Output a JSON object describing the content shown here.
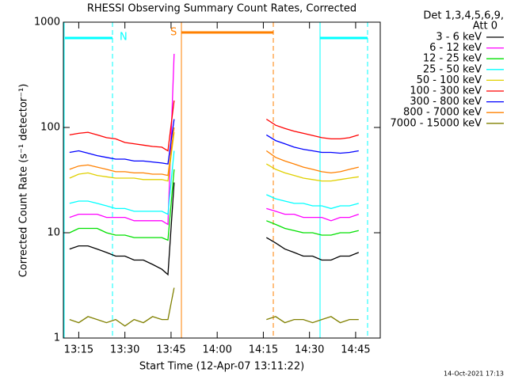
{
  "chart_data": {
    "type": "line",
    "title": "RHESSI Observing Summary Count Rates, Corrected",
    "x_label": "Start Time (12-Apr-07 13:11:22)",
    "y_label": "Corrected Count Rate (s⁻¹ detector⁻¹)",
    "legend_title": [
      "Det 1,3,4,5,6,9,",
      "Att 0"
    ],
    "annotations": [
      "N",
      "S"
    ],
    "footer": "14-Oct-2021 17:13",
    "log_scale": true,
    "x": [
      "13:12",
      "13:15",
      "13:18",
      "13:21",
      "13:24",
      "13:27",
      "13:30",
      "13:33",
      "13:36",
      "13:39",
      "13:42",
      "13:44",
      "13:46",
      "14:00",
      "14:16",
      "14:19",
      "14:22",
      "14:25",
      "14:28",
      "14:31",
      "14:34",
      "14:37",
      "14:40",
      "14:43",
      "14:46"
    ],
    "xlim": [
      "13:10",
      "14:53"
    ],
    "xticks": [
      "13:15",
      "13:30",
      "13:45",
      "14:00",
      "14:15",
      "14:30",
      "14:45"
    ],
    "ylim": [
      1,
      1000
    ],
    "yticks": [
      1,
      10,
      100,
      1000
    ],
    "series": [
      {
        "name": "3 - 6 keV",
        "color": "#000000",
        "values": [
          7,
          7.5,
          7.5,
          7,
          6.5,
          6,
          6,
          5.5,
          5.5,
          5,
          4.5,
          4,
          30,
          null,
          9,
          8,
          7,
          6.5,
          6,
          6,
          5.5,
          5.5,
          6,
          6,
          6.5
        ]
      },
      {
        "name": "6 - 12 keV",
        "color": "#ff00ff",
        "values": [
          14,
          15,
          15,
          15,
          14,
          14,
          14,
          13,
          13,
          13,
          13,
          12,
          500,
          null,
          17,
          16,
          15,
          15,
          14,
          14,
          14,
          13,
          14,
          14,
          15
        ]
      },
      {
        "name": "12 - 25 keV",
        "color": "#00e000",
        "values": [
          10,
          11,
          11,
          11,
          10,
          9.5,
          9.5,
          9,
          9,
          9,
          9,
          8.5,
          40,
          null,
          13,
          12,
          11,
          10.5,
          10,
          10,
          9.5,
          9.5,
          10,
          10,
          10.5
        ]
      },
      {
        "name": "25 - 50 keV",
        "color": "#00ffff",
        "values": [
          19,
          20,
          20,
          19,
          18,
          17,
          17,
          16,
          16,
          16,
          16,
          15,
          60,
          null,
          23,
          21,
          20,
          19,
          19,
          18,
          18,
          17,
          18,
          18,
          19
        ]
      },
      {
        "name": "50 - 100 keV",
        "color": "#e0d000",
        "values": [
          33,
          36,
          37,
          35,
          34,
          33,
          33,
          33,
          32,
          32,
          32,
          31,
          90,
          null,
          45,
          40,
          37,
          35,
          33,
          32,
          31,
          31,
          32,
          33,
          34
        ]
      },
      {
        "name": "100 - 300 keV",
        "color": "#ff0000",
        "values": [
          85,
          88,
          90,
          85,
          80,
          78,
          72,
          70,
          68,
          66,
          65,
          60,
          180,
          null,
          120,
          105,
          98,
          92,
          88,
          84,
          80,
          78,
          78,
          80,
          85
        ]
      },
      {
        "name": "300 - 800 keV",
        "color": "#0000ff",
        "values": [
          58,
          60,
          57,
          54,
          52,
          50,
          50,
          48,
          48,
          47,
          46,
          45,
          120,
          null,
          85,
          75,
          70,
          65,
          62,
          60,
          58,
          58,
          57,
          58,
          60
        ]
      },
      {
        "name": "800 - 7000 keV",
        "color": "#ff8000",
        "values": [
          40,
          43,
          44,
          42,
          40,
          38,
          38,
          37,
          37,
          36,
          36,
          35,
          100,
          null,
          60,
          52,
          48,
          45,
          42,
          40,
          38,
          37,
          38,
          40,
          42
        ]
      },
      {
        "name": "7000 - 15000 keV",
        "color": "#808000",
        "values": [
          1.5,
          1.4,
          1.6,
          1.5,
          1.4,
          1.5,
          1.3,
          1.5,
          1.4,
          1.6,
          1.5,
          1.5,
          3,
          null,
          1.5,
          1.6,
          1.4,
          1.5,
          1.5,
          1.4,
          1.5,
          1.6,
          1.4,
          1.5,
          1.5
        ]
      }
    ]
  }
}
